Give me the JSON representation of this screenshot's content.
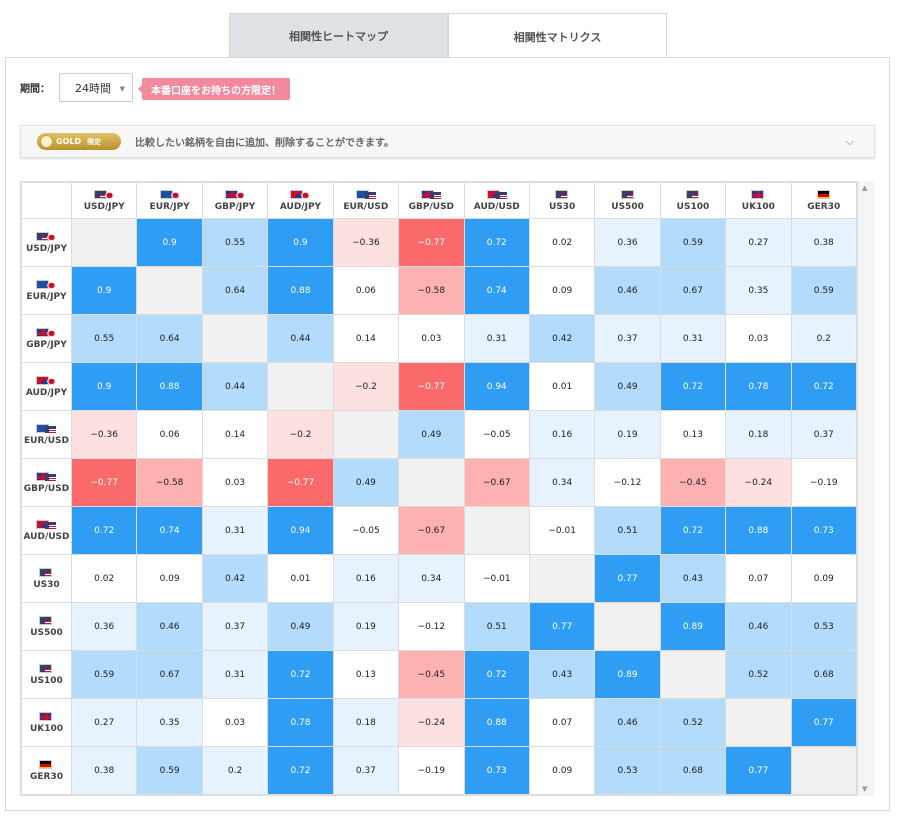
{
  "tabs": [
    {
      "label": "相関性ヒートマップ",
      "active": false
    },
    {
      "label": "相関性マトリクス",
      "active": true
    }
  ],
  "period": {
    "label": "期間：",
    "value": "24時間"
  },
  "promo": "本番口座をお持ちの方限定！",
  "gold": {
    "badge": "GOLD",
    "limit": "限定",
    "text": "比較したい銘柄を自由に追加、削除することができます。"
  },
  "instruments": [
    {
      "name": "USD/JPY",
      "flags": [
        "us",
        "jp"
      ]
    },
    {
      "name": "EUR/JPY",
      "flags": [
        "eu",
        "jp"
      ]
    },
    {
      "name": "GBP/JPY",
      "flags": [
        "gb",
        "jp"
      ]
    },
    {
      "name": "AUD/JPY",
      "flags": [
        "au",
        "jp"
      ]
    },
    {
      "name": "EUR/USD",
      "flags": [
        "eu",
        "us"
      ]
    },
    {
      "name": "GBP/USD",
      "flags": [
        "gb",
        "us"
      ]
    },
    {
      "name": "AUD/USD",
      "flags": [
        "au",
        "us"
      ]
    },
    {
      "name": "US30",
      "flags": [
        "us"
      ]
    },
    {
      "name": "US500",
      "flags": [
        "us"
      ]
    },
    {
      "name": "US100",
      "flags": [
        "us"
      ]
    },
    {
      "name": "UK100",
      "flags": [
        "gb"
      ]
    },
    {
      "name": "GER30",
      "flags": [
        "de"
      ]
    }
  ],
  "matrix": [
    [
      null,
      "0.9",
      "0.55",
      "0.9",
      "−0.36",
      "−0.77",
      "0.72",
      "0.02",
      "0.36",
      "0.59",
      "0.27",
      "0.38"
    ],
    [
      "0.9",
      null,
      "0.64",
      "0.88",
      "0.06",
      "−0.58",
      "0.74",
      "0.09",
      "0.46",
      "0.67",
      "0.35",
      "0.59"
    ],
    [
      "0.55",
      "0.64",
      null,
      "0.44",
      "0.14",
      "0.03",
      "0.31",
      "0.42",
      "0.37",
      "0.31",
      "0.03",
      "0.2"
    ],
    [
      "0.9",
      "0.88",
      "0.44",
      null,
      "−0.2",
      "−0.77",
      "0.94",
      "0.01",
      "0.49",
      "0.72",
      "0.78",
      "0.72"
    ],
    [
      "−0.36",
      "0.06",
      "0.14",
      "−0.2",
      null,
      "0.49",
      "−0.05",
      "0.16",
      "0.19",
      "0.13",
      "0.18",
      "0.37"
    ],
    [
      "−0.77",
      "−0.58",
      "0.03",
      "−0.77",
      "0.49",
      null,
      "−0.67",
      "0.34",
      "−0.12",
      "−0.45",
      "−0.24",
      "−0.19"
    ],
    [
      "0.72",
      "0.74",
      "0.31",
      "0.94",
      "−0.05",
      "−0.67",
      null,
      "−0.01",
      "0.51",
      "0.72",
      "0.88",
      "0.73"
    ],
    [
      "0.02",
      "0.09",
      "0.42",
      "0.01",
      "0.16",
      "0.34",
      "−0.01",
      null,
      "0.77",
      "0.43",
      "0.07",
      "0.09"
    ],
    [
      "0.36",
      "0.46",
      "0.37",
      "0.49",
      "0.19",
      "−0.12",
      "0.51",
      "0.77",
      null,
      "0.89",
      "0.46",
      "0.53"
    ],
    [
      "0.59",
      "0.67",
      "0.31",
      "0.72",
      "0.13",
      "−0.45",
      "0.72",
      "0.43",
      "0.89",
      null,
      "0.52",
      "0.68"
    ],
    [
      "0.27",
      "0.35",
      "0.03",
      "0.78",
      "0.18",
      "−0.24",
      "0.88",
      "0.07",
      "0.46",
      "0.52",
      null,
      "0.77"
    ],
    [
      "0.38",
      "0.59",
      "0.2",
      "0.72",
      "0.37",
      "−0.19",
      "0.73",
      "0.09",
      "0.53",
      "0.68",
      "0.77",
      null
    ]
  ],
  "colors": {
    "strong_pos": "#2f9df4",
    "mid_pos": "#b3dbfb",
    "weak_pos": "#e6f2fd",
    "neutral": "#ffffff",
    "weak_neg": "#fde0e0",
    "mid_neg": "#fdb1b1",
    "strong_neg": "#fb6a6a",
    "diagonal": "#f1f1f1"
  }
}
